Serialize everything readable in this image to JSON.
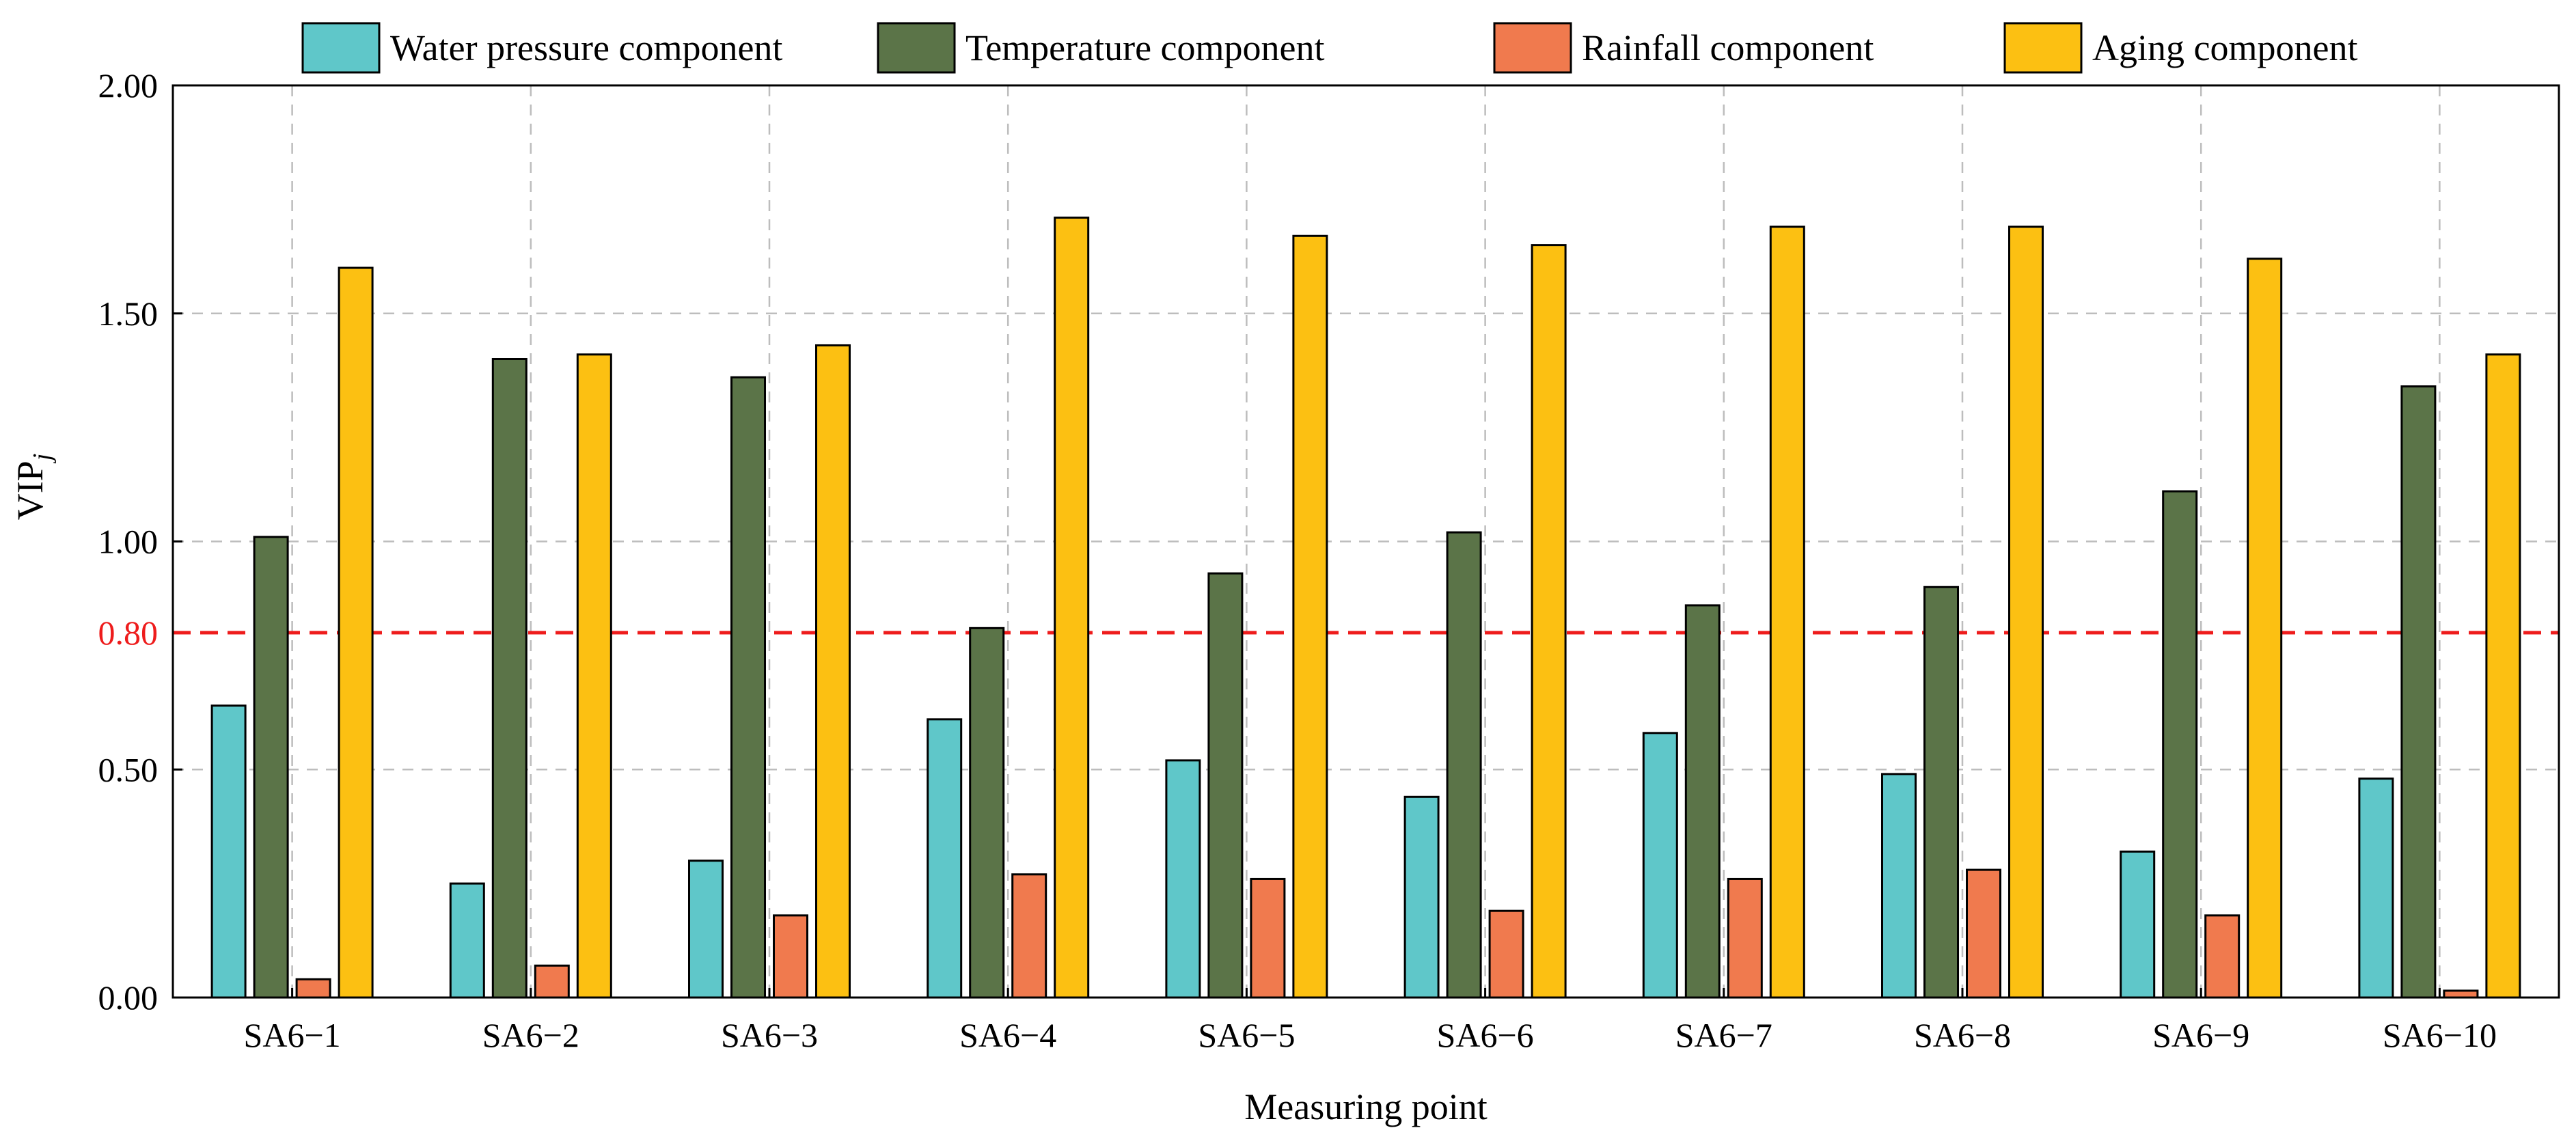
{
  "chart_data": {
    "type": "bar",
    "title": "",
    "xlabel": "Measuring point",
    "ylabel": "VIP",
    "ylabel_subscript": "j",
    "ylim": [
      0,
      2.0
    ],
    "yticks": [
      "0.00",
      "0.50",
      "1.00",
      "1.50",
      "2.00"
    ],
    "grid": true,
    "legend_position": "top",
    "reference_line": {
      "value": 0.8,
      "label": "0.80",
      "color": "#ee1c1c"
    },
    "categories": [
      "SA6−1",
      "SA6−2",
      "SA6−3",
      "SA6−4",
      "SA6−5",
      "SA6−6",
      "SA6−7",
      "SA6−8",
      "SA6−9",
      "SA6−10"
    ],
    "series": [
      {
        "name": "Water pressure component",
        "color": "#5fc7c9",
        "values": [
          0.64,
          0.25,
          0.3,
          0.61,
          0.52,
          0.44,
          0.58,
          0.49,
          0.32,
          0.48
        ]
      },
      {
        "name": "Temperature component",
        "color": "#5b7448",
        "values": [
          1.01,
          1.4,
          1.36,
          0.81,
          0.93,
          1.02,
          0.86,
          0.9,
          1.11,
          1.34
        ]
      },
      {
        "name": "Rainfall component",
        "color": "#f07a4e",
        "values": [
          0.04,
          0.07,
          0.18,
          0.27,
          0.26,
          0.19,
          0.26,
          0.28,
          0.18,
          0.015
        ]
      },
      {
        "name": "Aging component",
        "color": "#fcc012",
        "values": [
          1.6,
          1.41,
          1.43,
          1.71,
          1.67,
          1.65,
          1.69,
          1.69,
          1.62,
          1.41
        ]
      }
    ]
  }
}
